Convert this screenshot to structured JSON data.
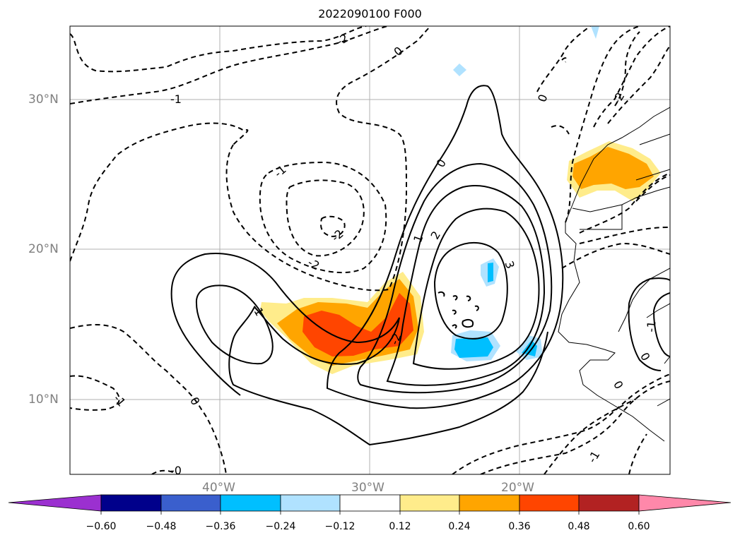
{
  "title": "2022090100 F000",
  "map": {
    "lat_labels": [
      "30°N",
      "20°N",
      "10°N"
    ],
    "lon_labels": [
      "40°W",
      "30°W",
      "20°W"
    ]
  },
  "contour_labels": [
    "-2",
    "0",
    "-1",
    "-1",
    "-2",
    "-2",
    "0",
    "1",
    "2",
    "3",
    "-1",
    "-2",
    "0",
    "-1",
    "0",
    "0",
    "-2",
    "-1",
    "0",
    "-1",
    "-0"
  ],
  "colorbar": {
    "ticks": [
      "−0.60",
      "−0.48",
      "−0.36",
      "−0.24",
      "−0.12",
      "0.12",
      "0.24",
      "0.36",
      "0.48",
      "0.60"
    ],
    "colors": [
      "#9b30d0",
      "#00008b",
      "#3a5fcd",
      "#00bfff",
      "#b0e2ff",
      "#ffffff",
      "#ffec8b",
      "#ffa500",
      "#ff4500",
      "#b22222",
      "#ff88aa"
    ]
  },
  "colors": {
    "frame": "#000000",
    "grid": "#b0b0b0",
    "label_gray": "#808080"
  }
}
